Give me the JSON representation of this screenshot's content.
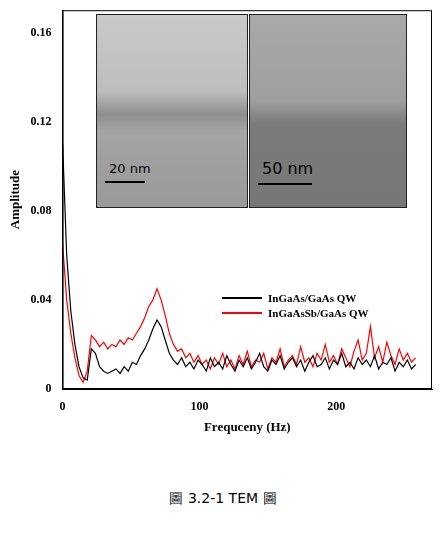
{
  "chart_data": {
    "type": "line",
    "x_label": "Frequceny (Hz)",
    "y_label": "Amplitude",
    "x": [
      0,
      3,
      6,
      9,
      12,
      15,
      18,
      21,
      24,
      27,
      30,
      33,
      36,
      39,
      42,
      45,
      48,
      51,
      54,
      57,
      60,
      63,
      66,
      69,
      72,
      75,
      78,
      81,
      84,
      87,
      90,
      93,
      96,
      99,
      102,
      105,
      108,
      111,
      114,
      117,
      120,
      123,
      126,
      129,
      132,
      135,
      138,
      141,
      144,
      147,
      150,
      153,
      156,
      159,
      162,
      165,
      168,
      171,
      174,
      177,
      180,
      183,
      186,
      189,
      192,
      195,
      198,
      201,
      204,
      207,
      210,
      213,
      216,
      219,
      222,
      225,
      228,
      231,
      234,
      237,
      240,
      243,
      246,
      249,
      252,
      255,
      258
    ],
    "series": [
      {
        "name": "InGaAs/GaAs QW",
        "color": "#000000",
        "values": [
          0.11,
          0.06,
          0.035,
          0.02,
          0.01,
          0.005,
          0.004,
          0.018,
          0.016,
          0.01,
          0.008,
          0.007,
          0.008,
          0.009,
          0.007,
          0.01,
          0.008,
          0.012,
          0.011,
          0.015,
          0.018,
          0.022,
          0.027,
          0.031,
          0.028,
          0.022,
          0.016,
          0.013,
          0.011,
          0.014,
          0.01,
          0.012,
          0.009,
          0.013,
          0.011,
          0.008,
          0.014,
          0.01,
          0.012,
          0.009,
          0.015,
          0.011,
          0.008,
          0.013,
          0.01,
          0.014,
          0.009,
          0.012,
          0.016,
          0.01,
          0.008,
          0.013,
          0.011,
          0.015,
          0.009,
          0.012,
          0.014,
          0.01,
          0.013,
          0.008,
          0.012,
          0.015,
          0.01,
          0.011,
          0.014,
          0.009,
          0.013,
          0.011,
          0.016,
          0.01,
          0.012,
          0.009,
          0.014,
          0.011,
          0.013,
          0.01,
          0.015,
          0.009,
          0.012,
          0.011,
          0.014,
          0.008,
          0.012,
          0.01,
          0.013,
          0.009,
          0.011
        ]
      },
      {
        "name": "InGaAsSb/GaAs QW",
        "color": "#ff0000",
        "values": [
          0.065,
          0.04,
          0.025,
          0.014,
          0.006,
          0.003,
          0.008,
          0.024,
          0.022,
          0.019,
          0.021,
          0.018,
          0.02,
          0.019,
          0.022,
          0.02,
          0.023,
          0.022,
          0.025,
          0.028,
          0.032,
          0.037,
          0.04,
          0.045,
          0.04,
          0.033,
          0.025,
          0.02,
          0.017,
          0.018,
          0.014,
          0.016,
          0.012,
          0.015,
          0.011,
          0.013,
          0.009,
          0.014,
          0.011,
          0.016,
          0.01,
          0.013,
          0.009,
          0.015,
          0.011,
          0.017,
          0.01,
          0.013,
          0.012,
          0.016,
          0.009,
          0.014,
          0.012,
          0.018,
          0.01,
          0.013,
          0.015,
          0.011,
          0.019,
          0.012,
          0.014,
          0.01,
          0.016,
          0.013,
          0.02,
          0.012,
          0.015,
          0.011,
          0.018,
          0.014,
          0.01,
          0.017,
          0.022,
          0.013,
          0.016,
          0.028,
          0.014,
          0.019,
          0.012,
          0.021,
          0.015,
          0.011,
          0.018,
          0.013,
          0.016,
          0.012,
          0.014
        ]
      }
    ],
    "xlim": [
      0,
      270
    ],
    "ylim": [
      0,
      0.17
    ],
    "xticks": [
      0,
      100,
      200
    ],
    "yticks": [
      0,
      0.04,
      0.08,
      0.12,
      0.16
    ],
    "grid": false,
    "legend": "right",
    "inset": {
      "panels": [
        {
          "scale_bar": "20 nm"
        },
        {
          "scale_bar": "50 nm"
        }
      ]
    }
  },
  "caption": "圖 3.2-1 TEM 圖"
}
